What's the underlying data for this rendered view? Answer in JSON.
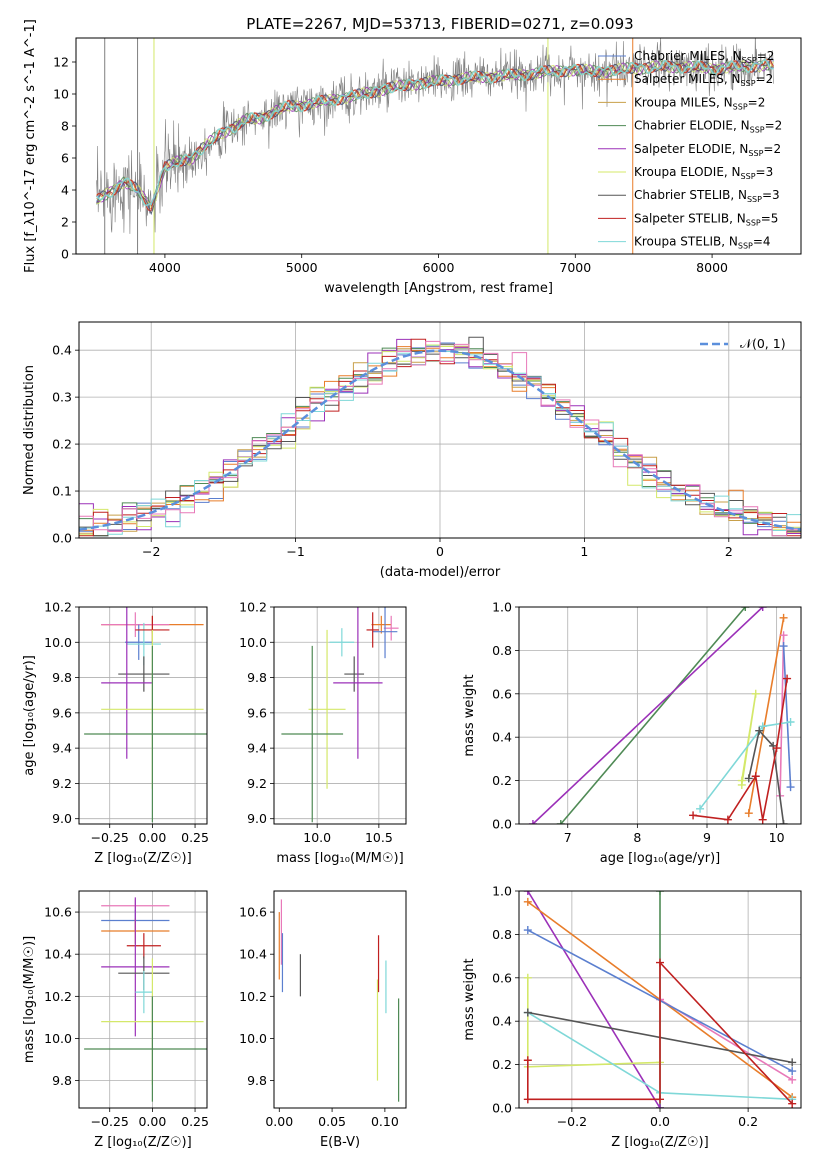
{
  "chart_data": [
    {
      "id": "spectrum",
      "type": "line",
      "title": "PLATE=2267, MJD=53713, FIBERID=0271, z=0.093",
      "xlabel": "wavelength [Angstrom, rest frame]",
      "ylabel": "Flux [f_λ10^-17 erg cm^-2 s^-1 A^-1]",
      "xlim": [
        3350,
        8650
      ],
      "ylim": [
        0,
        13.5
      ],
      "xticks": [
        4000,
        5000,
        6000,
        7000,
        8000
      ],
      "yticks": [
        0,
        2,
        4,
        6,
        8,
        10,
        12
      ],
      "grid": false,
      "legend_position": "right",
      "legend": [
        {
          "label": "Chabrier MILES, N_SSP=2",
          "color": "#5b7fcf"
        },
        {
          "label": "Salpeter MILES, N_SSP=2",
          "color": "#e87d2a"
        },
        {
          "label": "Kroupa MILES, N_SSP=2",
          "color": "#c8a04a"
        },
        {
          "label": "Chabrier ELODIE, N_SSP=2",
          "color": "#4f8a55"
        },
        {
          "label": "Salpeter ELODIE, N_SSP=2",
          "color": "#9b30b8"
        },
        {
          "label": "Kroupa ELODIE, N_SSP=3",
          "color": "#d4e86a"
        },
        {
          "label": "Chabrier STELIB, N_SSP=3",
          "color": "#555555"
        },
        {
          "label": "Salpeter STELIB, N_SSP=5",
          "color": "#c02020"
        },
        {
          "label": "Kroupa STELIB, N_SSP=4",
          "color": "#7fd8d8"
        }
      ],
      "model_curve": {
        "x": [
          3500,
          3600,
          3700,
          3800,
          3900,
          4000,
          4100,
          4200,
          4300,
          4400,
          4500,
          4600,
          4700,
          4800,
          4900,
          5000,
          5200,
          5400,
          5600,
          5800,
          6000,
          6200,
          6400,
          6600,
          6800,
          7000,
          7200,
          7400,
          7600,
          7800,
          8000,
          8200,
          8400
        ],
        "y": [
          3.3,
          3.9,
          4.5,
          4.0,
          2.9,
          5.4,
          5.8,
          6.0,
          6.8,
          7.5,
          7.9,
          8.4,
          8.5,
          8.9,
          9.2,
          9.3,
          9.6,
          9.9,
          10.3,
          10.6,
          10.8,
          11.0,
          11.1,
          11.2,
          11.4,
          11.5,
          11.4,
          11.6,
          11.7,
          11.7,
          11.6,
          11.7,
          11.8
        ]
      },
      "data_range": [
        3500,
        8450
      ],
      "data_noise": 1.0,
      "vertical_lines": [
        {
          "x": 3560,
          "color": "#808080"
        },
        {
          "x": 3800,
          "color": "#808080"
        },
        {
          "x": 3920,
          "color": "#d4e86a"
        },
        {
          "x": 6800,
          "color": "#d4e86a"
        },
        {
          "x": 7420,
          "color": "#e87d2a"
        }
      ]
    },
    {
      "id": "residuals",
      "type": "line",
      "xlabel": "(data-model)/error",
      "ylabel": "Normed distribution",
      "xlim": [
        -2.5,
        2.5
      ],
      "ylim": [
        0,
        0.46
      ],
      "xticks": [
        -2,
        -1,
        0,
        1,
        2
      ],
      "yticks": [
        0.0,
        0.1,
        0.2,
        0.3,
        0.4
      ],
      "grid": true,
      "legend_position": "top-right",
      "legend": [
        {
          "label": "𝒩(0, 1)",
          "color": "#5b8fdc",
          "dash": true
        }
      ],
      "bin_width": 0.1,
      "series_colors": [
        "#5b7fcf",
        "#e87d2a",
        "#c8a04a",
        "#4f8a55",
        "#9b30b8",
        "#d4e86a",
        "#555555",
        "#c02020",
        "#7fd8d8",
        "#e879b9"
      ]
    },
    {
      "id": "z_age",
      "type": "scatter",
      "xlabel": "Z [log₁₀(Z/Z☉)]",
      "ylabel": "age  [log₁₀(age/yr)]",
      "xlim": [
        -0.43,
        0.32
      ],
      "ylim": [
        8.97,
        10.2
      ],
      "xticks": [
        -0.25,
        0.0,
        0.25
      ],
      "yticks": [
        9.0,
        9.2,
        9.4,
        9.6,
        9.8,
        10.0,
        10.2
      ],
      "grid": true,
      "points": [
        {
          "x": 0.0,
          "xerr": 0.3,
          "y": 10.1,
          "yerr": 0.05,
          "color": "#e87d2a"
        },
        {
          "x": -0.1,
          "xerr": 0.2,
          "y": 10.1,
          "yerr": 0.07,
          "color": "#e879b9"
        },
        {
          "x": -0.08,
          "xerr": 0.08,
          "y": 10.0,
          "yerr": 0.1,
          "color": "#5b7fcf"
        },
        {
          "x": -0.05,
          "xerr": 0.1,
          "y": 9.99,
          "yerr": 0.12,
          "color": "#7fd8d8"
        },
        {
          "x": 0.0,
          "xerr": 0.1,
          "y": 10.07,
          "yerr": 0.08,
          "color": "#c02020"
        },
        {
          "x": -0.05,
          "xerr": 0.15,
          "y": 9.82,
          "yerr": 0.1,
          "color": "#555555"
        },
        {
          "x": -0.15,
          "xerr": 0.15,
          "y": 9.77,
          "yerr": 0.43,
          "color": "#9b30b8"
        },
        {
          "x": 0.0,
          "xerr": 0.3,
          "y": 9.62,
          "yerr": 0.45,
          "color": "#d4e86a"
        },
        {
          "x": 0.0,
          "xerr": 0.4,
          "y": 9.48,
          "yerr": 0.5,
          "color": "#4f8a55"
        }
      ]
    },
    {
      "id": "mass_age",
      "type": "scatter",
      "xlabel": "mass [log₁₀(M/M☉)]",
      "ylabel": "",
      "xlim": [
        9.65,
        10.72
      ],
      "ylim": [
        8.97,
        10.2
      ],
      "xticks": [
        10.0,
        10.5
      ],
      "yticks": [
        9.0,
        9.2,
        9.4,
        9.6,
        9.8,
        10.0,
        10.2
      ],
      "grid": true,
      "points": [
        {
          "x": 10.52,
          "xerr": 0.08,
          "y": 10.1,
          "yerr": 0.05,
          "color": "#e87d2a"
        },
        {
          "x": 10.6,
          "xerr": 0.06,
          "y": 10.08,
          "yerr": 0.07,
          "color": "#e879b9"
        },
        {
          "x": 10.55,
          "xerr": 0.1,
          "y": 10.06,
          "yerr": 0.15,
          "color": "#5b7fcf"
        },
        {
          "x": 10.2,
          "xerr": 0.1,
          "y": 10.0,
          "yerr": 0.08,
          "color": "#7fd8d8"
        },
        {
          "x": 10.45,
          "xerr": 0.05,
          "y": 10.07,
          "yerr": 0.1,
          "color": "#c02020"
        },
        {
          "x": 10.3,
          "xerr": 0.08,
          "y": 9.82,
          "yerr": 0.1,
          "color": "#555555"
        },
        {
          "x": 10.33,
          "xerr": 0.2,
          "y": 9.77,
          "yerr": 0.43,
          "color": "#9b30b8"
        },
        {
          "x": 10.08,
          "xerr": 0.15,
          "y": 9.62,
          "yerr": 0.45,
          "color": "#d4e86a"
        },
        {
          "x": 9.96,
          "xerr": 0.25,
          "y": 9.48,
          "yerr": 0.5,
          "color": "#4f8a55"
        }
      ]
    },
    {
      "id": "age_weight",
      "type": "line",
      "xlabel": "age  [log₁₀(age/yr)]",
      "ylabel": "mass weight",
      "xlim": [
        6.3,
        10.35
      ],
      "ylim": [
        0,
        1.0
      ],
      "xticks": [
        7,
        8,
        9,
        10
      ],
      "yticks": [
        0.0,
        0.2,
        0.4,
        0.6,
        0.8,
        1.0
      ],
      "grid": true,
      "series": [
        {
          "color": "#4f8a55",
          "x": [
            6.9,
            9.55
          ],
          "y": [
            0.0,
            1.0
          ]
        },
        {
          "color": "#9b30b8",
          "x": [
            6.5,
            9.8
          ],
          "y": [
            0.0,
            1.0
          ]
        },
        {
          "color": "#e87d2a",
          "x": [
            9.6,
            10.1
          ],
          "y": [
            0.05,
            0.95
          ]
        },
        {
          "color": "#e879b9",
          "x": [
            10.05,
            10.1
          ],
          "y": [
            0.13,
            0.87
          ]
        },
        {
          "color": "#5b7fcf",
          "x": [
            10.1,
            10.2
          ],
          "y": [
            0.82,
            0.17
          ]
        },
        {
          "color": "#d4e86a",
          "x": [
            9.5,
            9.7,
            9.5
          ],
          "y": [
            0.2,
            0.6,
            0.18
          ]
        },
        {
          "color": "#7fd8d8",
          "x": [
            8.9,
            9.8,
            10.2
          ],
          "y": [
            0.07,
            0.45,
            0.47
          ]
        },
        {
          "color": "#555555",
          "x": [
            9.6,
            9.75,
            9.95,
            10.1
          ],
          "y": [
            0.21,
            0.43,
            0.36,
            0.0
          ]
        },
        {
          "color": "#c02020",
          "x": [
            8.8,
            9.3,
            9.7,
            9.8,
            10.0,
            10.15
          ],
          "y": [
            0.04,
            0.02,
            0.22,
            0.02,
            0.35,
            0.67
          ]
        }
      ]
    },
    {
      "id": "z_mass",
      "type": "scatter",
      "xlabel": "Z [log₁₀(Z/Z☉)]",
      "ylabel": "mass [log₁₀(M/M☉)]",
      "xlim": [
        -0.43,
        0.32
      ],
      "ylim": [
        9.67,
        10.7
      ],
      "xticks": [
        -0.25,
        0.0,
        0.25
      ],
      "yticks": [
        9.8,
        10.0,
        10.2,
        10.4,
        10.6
      ],
      "grid": true,
      "points": [
        {
          "x": -0.1,
          "xerr": 0.2,
          "y": 10.63,
          "yerr": 0.03,
          "color": "#e879b9"
        },
        {
          "x": -0.1,
          "xerr": 0.2,
          "y": 10.56,
          "yerr": 0.05,
          "color": "#5b7fcf"
        },
        {
          "x": -0.1,
          "xerr": 0.2,
          "y": 10.51,
          "yerr": 0.06,
          "color": "#e87d2a"
        },
        {
          "x": -0.05,
          "xerr": 0.1,
          "y": 10.44,
          "yerr": 0.06,
          "color": "#c02020"
        },
        {
          "x": -0.1,
          "xerr": 0.2,
          "y": 10.34,
          "yerr": 0.33,
          "color": "#9b30b8"
        },
        {
          "x": -0.05,
          "xerr": 0.15,
          "y": 10.31,
          "yerr": 0.08,
          "color": "#555555"
        },
        {
          "x": -0.05,
          "xerr": 0.05,
          "y": 10.22,
          "yerr": 0.1,
          "color": "#7fd8d8"
        },
        {
          "x": 0.0,
          "xerr": 0.3,
          "y": 10.08,
          "yerr": 0.3,
          "color": "#d4e86a"
        },
        {
          "x": 0.0,
          "xerr": 0.4,
          "y": 9.95,
          "yerr": 0.25,
          "color": "#4f8a55"
        }
      ]
    },
    {
      "id": "ebv_mass",
      "type": "scatter",
      "xlabel": "E(B-V)",
      "ylabel": "",
      "xlim": [
        -0.005,
        0.12
      ],
      "ylim": [
        9.67,
        10.7
      ],
      "xticks": [
        0.0,
        0.05,
        0.1
      ],
      "yticks": [
        9.8,
        10.0,
        10.2,
        10.4,
        10.6
      ],
      "grid": false,
      "vlines": [
        {
          "x": 0.0,
          "y0": 10.28,
          "y1": 10.6,
          "color": "#e87d2a"
        },
        {
          "x": 0.002,
          "y0": 10.35,
          "y1": 10.66,
          "color": "#e879b9"
        },
        {
          "x": 0.003,
          "y0": 10.22,
          "y1": 10.5,
          "color": "#5b7fcf"
        },
        {
          "x": 0.02,
          "y0": 10.2,
          "y1": 10.4,
          "color": "#555555"
        },
        {
          "x": 0.093,
          "y0": 9.8,
          "y1": 10.28,
          "color": "#d4e86a"
        },
        {
          "x": 0.094,
          "y0": 10.22,
          "y1": 10.49,
          "color": "#c02020"
        },
        {
          "x": 0.101,
          "y0": 10.12,
          "y1": 10.37,
          "color": "#7fd8d8"
        },
        {
          "x": 0.113,
          "y0": 9.7,
          "y1": 10.19,
          "color": "#4f8a55"
        }
      ]
    },
    {
      "id": "z_weight",
      "type": "line",
      "xlabel": "Z [log₁₀(Z/Z☉)]",
      "ylabel": "mass weight",
      "xlim": [
        -0.32,
        0.32
      ],
      "ylim": [
        0,
        1.0
      ],
      "xticks": [
        -0.2,
        0.0,
        0.2
      ],
      "yticks": [
        0.0,
        0.2,
        0.4,
        0.6,
        0.8,
        1.0
      ],
      "grid": true,
      "series": [
        {
          "color": "#4f8a55",
          "x": [
            0.0,
            0.0
          ],
          "y": [
            0.0,
            1.0
          ]
        },
        {
          "color": "#9b30b8",
          "x": [
            -0.3,
            0.0
          ],
          "y": [
            1.0,
            0.0
          ]
        },
        {
          "color": "#e87d2a",
          "x": [
            -0.3,
            0.3
          ],
          "y": [
            0.95,
            0.05
          ]
        },
        {
          "color": "#e879b9",
          "x": [
            0.0,
            0.3
          ],
          "y": [
            0.5,
            0.13
          ]
        },
        {
          "color": "#5b7fcf",
          "x": [
            -0.3,
            0.3
          ],
          "y": [
            0.82,
            0.17
          ]
        },
        {
          "color": "#d4e86a",
          "x": [
            -0.3,
            -0.3,
            0.0
          ],
          "y": [
            0.6,
            0.19,
            0.21
          ]
        },
        {
          "color": "#7fd8d8",
          "x": [
            -0.3,
            0.0,
            0.3
          ],
          "y": [
            0.44,
            0.07,
            0.04
          ]
        },
        {
          "color": "#555555",
          "x": [
            -0.3,
            0.3
          ],
          "y": [
            0.44,
            0.21
          ]
        },
        {
          "color": "#c02020",
          "x": [
            -0.3,
            -0.3,
            0.0,
            0.0,
            0.3
          ],
          "y": [
            0.22,
            0.04,
            0.04,
            0.67,
            0.02
          ]
        }
      ]
    }
  ]
}
